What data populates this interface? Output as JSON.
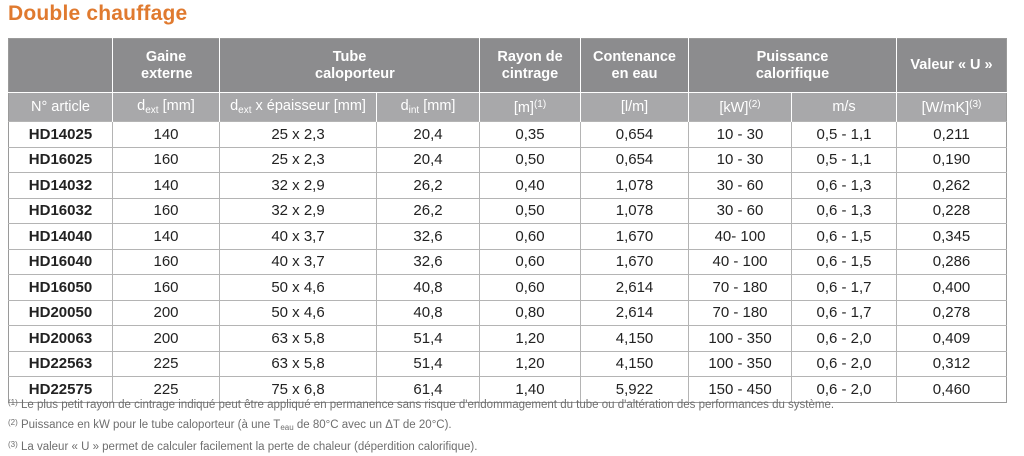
{
  "title": "Double chauffage",
  "header_groups": [
    "Gaine externe",
    "Tube caloporteur",
    "Rayon de cintrage",
    "Contenance en eau",
    "Puissance calorifique",
    "Valeur « U »"
  ],
  "columns": {
    "article": "N° article",
    "dext_prefix": "d",
    "dext_sub": "ext",
    "dext_unit": " [mm]",
    "tube_prefix": "d",
    "tube_sub": "ext",
    "tube_rest": " x épaisseur [mm]",
    "dint_prefix": "d",
    "dint_sub": "int",
    "dint_unit": " [mm]",
    "rayon": "[m]",
    "rayon_ref": "(1)",
    "contenance": "[l/m]",
    "puissance": "[kW]",
    "puissance_ref": "(2)",
    "vitesse": "m/s",
    "valeur_u": "[W/mK]",
    "valeur_u_ref": "(3)"
  },
  "rows": [
    [
      "HD14025",
      "140",
      "25 x 2,3",
      "20,4",
      "0,35",
      "0,654",
      "10 - 30",
      "0,5 - 1,1",
      "0,211"
    ],
    [
      "HD16025",
      "160",
      "25 x 2,3",
      "20,4",
      "0,50",
      "0,654",
      "10 - 30",
      "0,5 - 1,1",
      "0,190"
    ],
    [
      "HD14032",
      "140",
      "32 x 2,9",
      "26,2",
      "0,40",
      "1,078",
      "30 - 60",
      "0,6 - 1,3",
      "0,262"
    ],
    [
      "HD16032",
      "160",
      "32 x 2,9",
      "26,2",
      "0,50",
      "1,078",
      "30 - 60",
      "0,6 - 1,3",
      "0,228"
    ],
    [
      "HD14040",
      "140",
      "40 x 3,7",
      "32,6",
      "0,60",
      "1,670",
      "40- 100",
      "0,6 - 1,5",
      "0,345"
    ],
    [
      "HD16040",
      "160",
      "40 x 3,7",
      "32,6",
      "0,60",
      "1,670",
      "40 - 100",
      "0,6 - 1,5",
      "0,286"
    ],
    [
      "HD16050",
      "160",
      "50 x 4,6",
      "40,8",
      "0,60",
      "2,614",
      "70 - 180",
      "0,6 - 1,7",
      "0,400"
    ],
    [
      "HD20050",
      "200",
      "50 x 4,6",
      "40,8",
      "0,80",
      "2,614",
      "70 - 180",
      "0,6 - 1,7",
      "0,278"
    ],
    [
      "HD20063",
      "200",
      "63 x 5,8",
      "51,4",
      "1,20",
      "4,150",
      "100 - 350",
      "0,6 - 2,0",
      "0,409"
    ],
    [
      "HD22563",
      "225",
      "63 x 5,8",
      "51,4",
      "1,20",
      "4,150",
      "100 - 350",
      "0,6 - 2,0",
      "0,312"
    ],
    [
      "HD22575",
      "225",
      "75 x 6,8",
      "61,4",
      "1,40",
      "5,922",
      "150 - 450",
      "0,6 - 2,0",
      "0,460"
    ]
  ],
  "notes": {
    "n1_mark": "(1)",
    "n1_text": " Le plus petit rayon de cintrage indiqué peut être appliqué en permanence sans risque d'endommagement du tube ou d'altération des performances du système.",
    "n2_mark": "(2)",
    "n2_text_a": " Puissance en kW pour le tube caloporteur (à une T",
    "n2_sub": "eau",
    "n2_text_b": " de 80°C avec un ΔT de 20°C).",
    "n3_mark": "(3)",
    "n3_text": " La valeur « U » permet de calculer facilement la perte de chaleur (déperdition calorifique)."
  }
}
